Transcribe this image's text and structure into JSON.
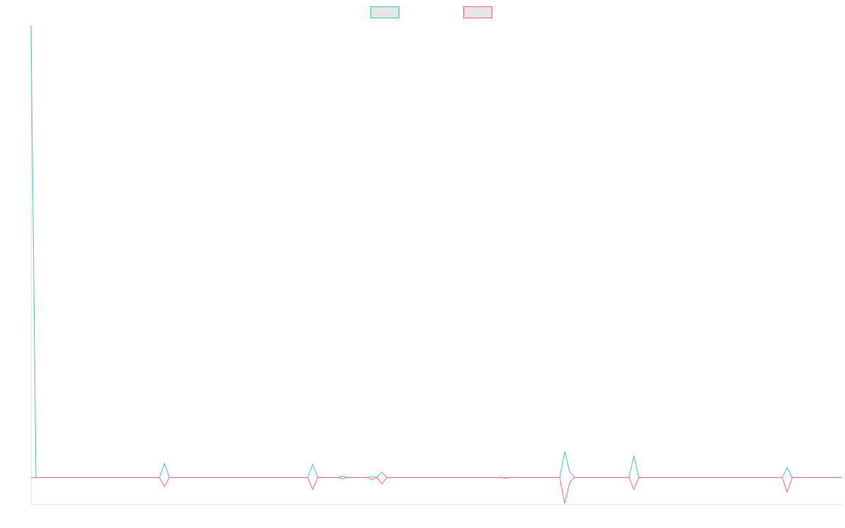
{
  "chart_data": {
    "type": "line",
    "x": [
      0,
      1,
      26,
      27,
      28,
      56,
      57,
      58,
      62,
      63,
      64,
      68,
      69,
      70,
      71,
      72,
      95,
      96,
      97,
      107,
      108,
      109,
      110,
      121,
      122,
      123,
      152,
      153,
      154,
      164
    ],
    "series": [
      {
        "color": "#4bc0c0",
        "values": [
          170,
          0,
          0,
          5.3,
          0,
          0,
          5,
          0,
          0,
          0.5,
          0,
          0,
          0.3,
          0,
          2.1,
          0,
          0,
          0,
          0,
          0,
          9.8,
          2.1,
          0,
          0,
          8.2,
          0,
          0,
          3.7,
          0,
          0
        ]
      },
      {
        "color": "#ff6384",
        "values": [
          0,
          0,
          0,
          -3.4,
          0,
          0,
          -4.5,
          0,
          0,
          -0.5,
          0,
          0,
          -0.8,
          0,
          -2.4,
          0,
          0,
          -0.3,
          0,
          0,
          -9.8,
          -1.9,
          0,
          0,
          -4.5,
          0,
          0,
          -5.6,
          0,
          0
        ]
      }
    ],
    "xlim": [
      0,
      164
    ],
    "ylim": [
      -10,
      170
    ],
    "legend": "top"
  }
}
